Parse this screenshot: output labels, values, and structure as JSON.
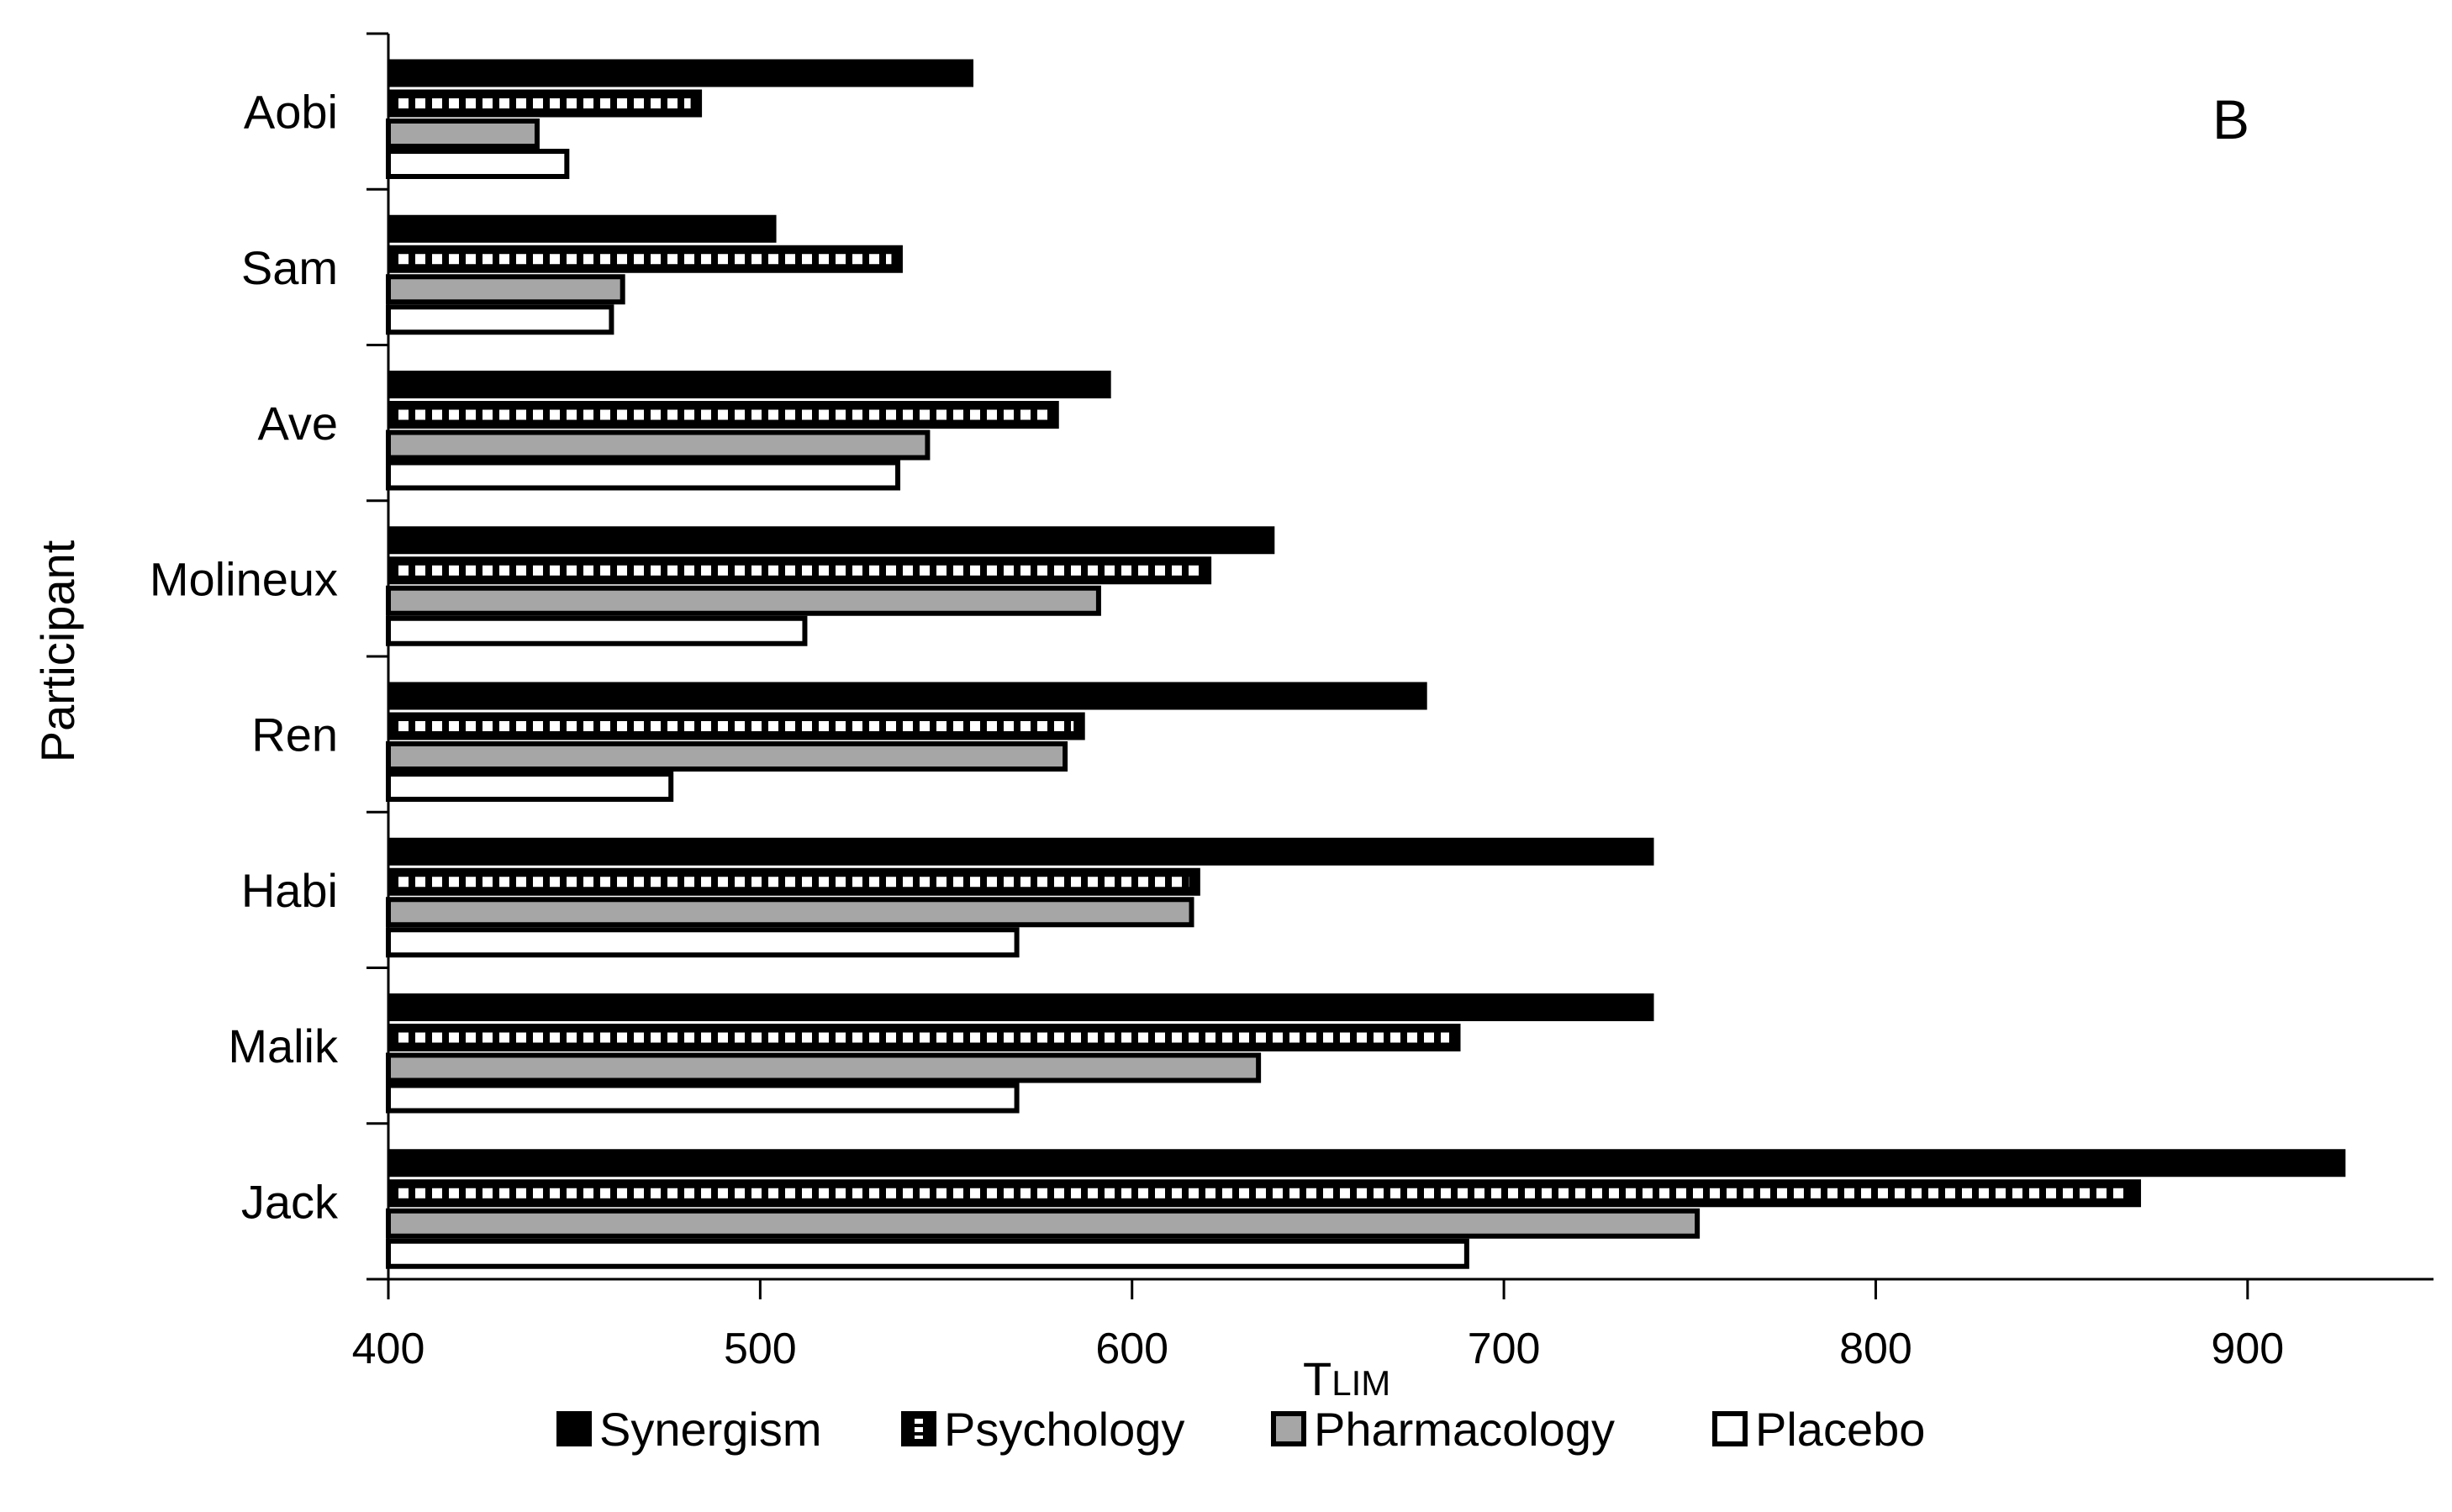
{
  "chart_data": {
    "type": "bar",
    "orientation": "horizontal",
    "panel_label": "B",
    "ylabel": "Participant",
    "xlabel_main": "T",
    "xlabel_sub": "LIM",
    "xlim": [
      400,
      950
    ],
    "xticks": [
      400,
      500,
      600,
      700,
      800,
      900
    ],
    "xtick_labels": [
      "400",
      "500",
      "600",
      "700",
      "800",
      "900"
    ],
    "categories": [
      "Aobi",
      "Sam",
      "Ave",
      "Molineux",
      "Ren",
      "Habi",
      "Malik",
      "Jack"
    ],
    "series": [
      {
        "name": "Synergism",
        "style": "solid-black",
        "values": [
          557,
          504,
          594,
          638,
          679,
          740,
          740,
          926
        ]
      },
      {
        "name": "Psychology",
        "style": "white-dashed",
        "values": [
          484,
          538,
          580,
          621,
          587,
          618,
          688,
          871
        ]
      },
      {
        "name": "Pharmacology",
        "style": "gray",
        "values": [
          440,
          463,
          545,
          591,
          582,
          616,
          634,
          752
        ]
      },
      {
        "name": "Placebo",
        "style": "white",
        "values": [
          448,
          460,
          537,
          512,
          476,
          569,
          569,
          690
        ]
      }
    ],
    "legend_position": "bottom",
    "grid": false
  }
}
